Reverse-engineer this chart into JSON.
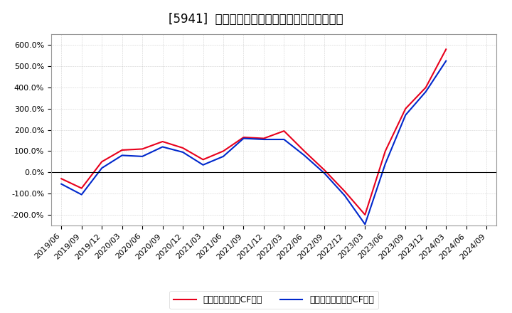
{
  "title": "[5941]  有利子負債キャッシュフロー比率の推移",
  "x_labels": [
    "2019/06",
    "2019/09",
    "2019/12",
    "2020/03",
    "2020/06",
    "2020/09",
    "2020/12",
    "2021/03",
    "2021/06",
    "2021/09",
    "2021/12",
    "2022/03",
    "2022/06",
    "2022/09",
    "2022/12",
    "2023/03",
    "2023/06",
    "2023/09",
    "2023/12",
    "2024/03",
    "2024/06",
    "2024/09"
  ],
  "red_values": [
    -30,
    -75,
    50,
    105,
    110,
    145,
    115,
    60,
    100,
    165,
    160,
    195,
    100,
    10,
    -90,
    -200,
    100,
    300,
    400,
    580,
    null,
    null
  ],
  "blue_values": [
    -55,
    -105,
    20,
    80,
    75,
    120,
    95,
    35,
    75,
    160,
    155,
    155,
    80,
    -5,
    -110,
    -245,
    40,
    270,
    380,
    525,
    null,
    null
  ],
  "ylim": [
    -250,
    650
  ],
  "yticks": [
    -200,
    -100,
    0,
    100,
    200,
    300,
    400,
    500,
    600
  ],
  "red_label": "有利子負債営業CF比率",
  "blue_label": "有利子負債フリーCF比率",
  "red_color": "#e8001c",
  "blue_color": "#0028cc",
  "bg_color": "#ffffff",
  "plot_bg_color": "#ffffff",
  "grid_color": "#aaaaaa",
  "title_fontsize": 12,
  "legend_fontsize": 9,
  "tick_fontsize": 8
}
